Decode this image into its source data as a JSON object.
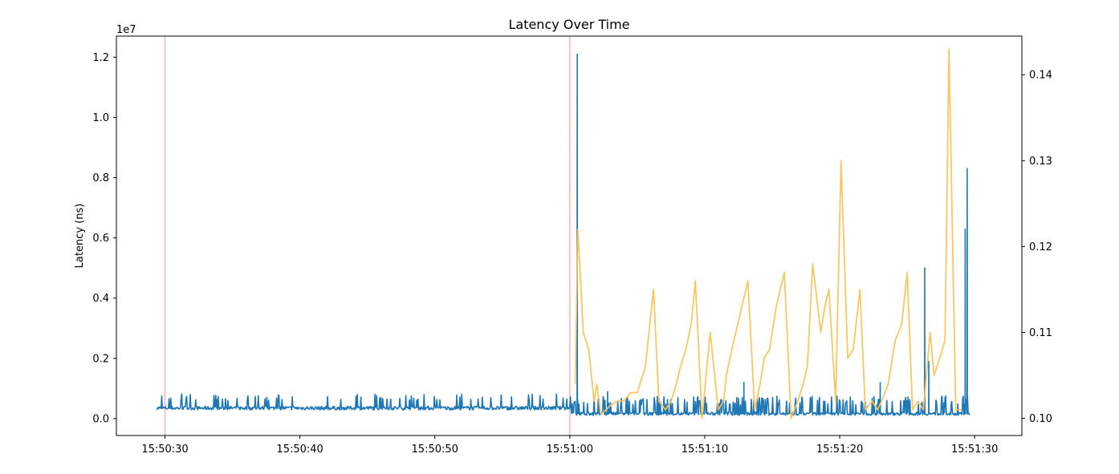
{
  "chart_data": {
    "type": "line",
    "title": "Latency Over Time",
    "ylabel": "Latency (ns)",
    "ylabel_right": "",
    "y_offset_label": "1e7",
    "x_tick_labels": [
      "15:50:30",
      "15:50:40",
      "15:50:50",
      "15:51:00",
      "15:51:10",
      "15:51:20",
      "15:51:30"
    ],
    "x_tick_seconds": [
      30,
      40,
      50,
      60,
      70,
      80,
      90
    ],
    "xlim_seconds": [
      26.4,
      93.5
    ],
    "y_ticks": [
      0.0,
      0.2,
      0.4,
      0.6,
      0.8,
      1.0,
      1.2
    ],
    "y_tick_labels": [
      "0.0",
      "0.2",
      "0.4",
      "0.6",
      "0.8",
      "1.0",
      "1.2"
    ],
    "ylim": [
      -0.056,
      1.27
    ],
    "y2_ticks": [
      0.1,
      0.11,
      0.12,
      0.13,
      0.14
    ],
    "y2_tick_labels": [
      "0.10",
      "0.11",
      "0.12",
      "0.13",
      "0.14"
    ],
    "y2lim": [
      0.098,
      0.1445
    ],
    "grid": false,
    "legend": "none",
    "colors": {
      "latency": "#1f77b4",
      "secondary": "#f8c45c",
      "markers": "#ffb3b3"
    },
    "vertical_markers_seconds": [
      30.0,
      60.0
    ],
    "series": [
      {
        "axis": "left",
        "color": "#1f77b4",
        "baseline_before_60s": 0.035,
        "baseline_after_60s": 0.016,
        "spikes": [
          {
            "t": 60.55,
            "y": 1.21
          },
          {
            "t": 62.8,
            "y": 0.09
          },
          {
            "t": 72.9,
            "y": 0.12
          },
          {
            "t": 83.0,
            "y": 0.12
          },
          {
            "t": 86.3,
            "y": 0.5
          },
          {
            "t": 86.6,
            "y": 0.19
          },
          {
            "t": 89.3,
            "y": 0.63
          },
          {
            "t": 89.45,
            "y": 0.83
          }
        ]
      },
      {
        "axis": "right",
        "color": "#f8c45c",
        "x": [
          60.4,
          60.6,
          61.0,
          61.4,
          61.8,
          62.0,
          62.3,
          62.7,
          63.0,
          63.5,
          64.0,
          64.5,
          65.0,
          65.6,
          66.2,
          66.6,
          67.1,
          67.5,
          67.9,
          68.2,
          68.6,
          69.0,
          69.3,
          69.8,
          70.4,
          71.0,
          71.4,
          71.6,
          72.0,
          72.6,
          73.2,
          73.7,
          74.1,
          74.4,
          74.8,
          75.3,
          75.9,
          76.4,
          76.9,
          77.3,
          77.6,
          78.0,
          78.6,
          78.9,
          79.2,
          79.7,
          80.1,
          80.6,
          81.0,
          81.5,
          81.9,
          82.4,
          82.8,
          83.1,
          83.6,
          84.1,
          84.6,
          85.0,
          85.4,
          85.8,
          86.2,
          86.7,
          87.0,
          87.4,
          87.8,
          88.1,
          88.6,
          89.0
        ],
        "y": [
          0.104,
          0.122,
          0.11,
          0.108,
          0.102,
          0.104,
          0.1005,
          0.101,
          0.1015,
          0.102,
          0.102,
          0.103,
          0.103,
          0.106,
          0.115,
          0.102,
          0.101,
          0.102,
          0.104,
          0.106,
          0.108,
          0.111,
          0.116,
          0.1,
          0.11,
          0.101,
          0.102,
          0.105,
          0.108,
          0.112,
          0.116,
          0.101,
          0.104,
          0.107,
          0.108,
          0.113,
          0.117,
          0.1,
          0.102,
          0.104,
          0.106,
          0.118,
          0.11,
          0.113,
          0.115,
          0.102,
          0.13,
          0.107,
          0.108,
          0.115,
          0.101,
          0.102,
          0.101,
          0.102,
          0.104,
          0.109,
          0.111,
          0.117,
          0.101,
          0.102,
          0.101,
          0.11,
          0.105,
          0.107,
          0.109,
          0.143,
          0.101,
          0.101
        ]
      }
    ]
  }
}
